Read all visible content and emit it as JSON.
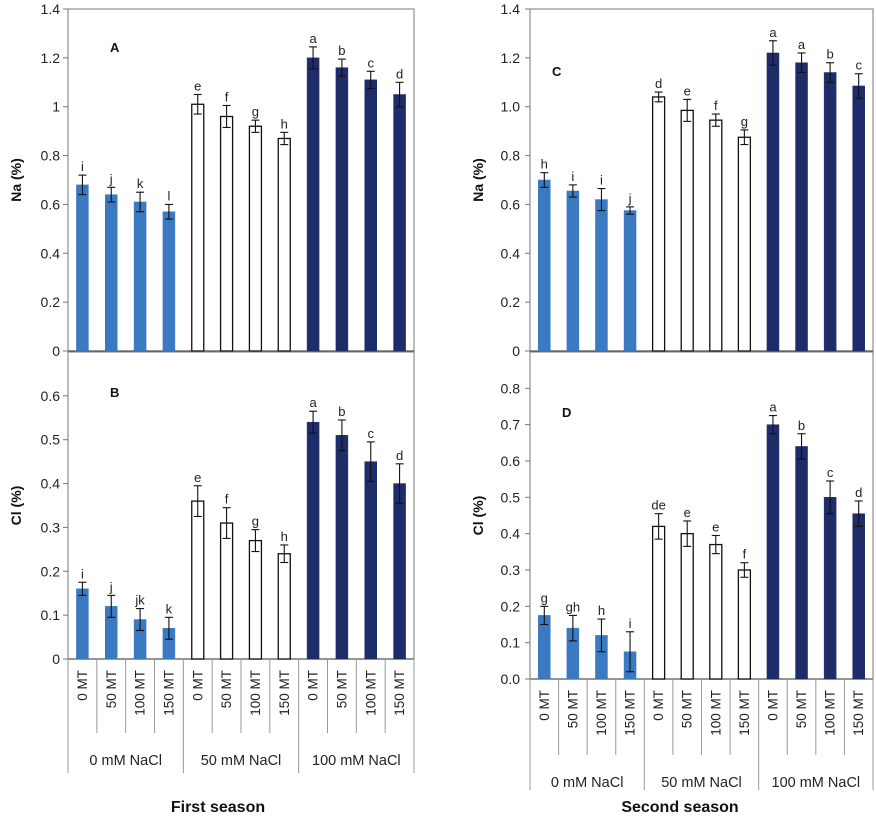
{
  "colors": {
    "group_0": "#3b79c1",
    "group_50": "#ffffff",
    "group_100": "#1e2c69",
    "outline": "#111111"
  },
  "seasons": [
    "First season",
    "Second season"
  ],
  "chart_data": [
    {
      "panel": "A",
      "type": "bar",
      "ylabel": "Na (%)",
      "ylim": [
        0,
        1.4
      ],
      "yticks": [
        0,
        0.2,
        0.4,
        0.6,
        0.8,
        1,
        1.2,
        1.4
      ],
      "ytick_labels": [
        "0",
        "0.2",
        "0.4",
        "0.6",
        "0.8",
        "1",
        "1.2",
        "1.4"
      ],
      "categories": [
        "0 MT",
        "50 MT",
        "100 MT",
        "150 MT",
        "0 MT",
        "50 MT",
        "100 MT",
        "150 MT",
        "0 MT",
        "50 MT",
        "100 MT",
        "150 MT"
      ],
      "groups": [
        "0 mM NaCl",
        "50 mM NaCl",
        "100 mM NaCl"
      ],
      "values": [
        0.68,
        0.64,
        0.61,
        0.57,
        1.01,
        0.96,
        0.92,
        0.87,
        1.2,
        1.16,
        1.11,
        1.05
      ],
      "errors": [
        0.04,
        0.03,
        0.04,
        0.03,
        0.04,
        0.045,
        0.025,
        0.025,
        0.045,
        0.035,
        0.035,
        0.05
      ],
      "letters": [
        "i",
        "j",
        "k",
        "l",
        "e",
        "f",
        "g",
        "h",
        "a",
        "b",
        "c",
        "d"
      ]
    },
    {
      "panel": "B",
      "type": "bar",
      "ylabel": "Cl (%)",
      "ylim": [
        0,
        0.7
      ],
      "yticks": [
        0,
        0.1,
        0.2,
        0.3,
        0.4,
        0.5,
        0.6
      ],
      "ytick_labels": [
        "0",
        "0.1",
        "0.2",
        "0.3",
        "0.4",
        "0.5",
        "0.6"
      ],
      "categories": [
        "0 MT",
        "50 MT",
        "100 MT",
        "150 MT",
        "0 MT",
        "50 MT",
        "100 MT",
        "150 MT",
        "0 MT",
        "50 MT",
        "100 MT",
        "150 MT"
      ],
      "groups": [
        "0 mM NaCl",
        "50 mM NaCl",
        "100 mM NaCl"
      ],
      "values": [
        0.16,
        0.12,
        0.09,
        0.07,
        0.36,
        0.31,
        0.27,
        0.24,
        0.54,
        0.51,
        0.45,
        0.4
      ],
      "errors": [
        0.015,
        0.025,
        0.025,
        0.025,
        0.035,
        0.035,
        0.025,
        0.02,
        0.025,
        0.035,
        0.045,
        0.045
      ],
      "letters": [
        "i",
        "j",
        "jk",
        "k",
        "e",
        "f",
        "g",
        "h",
        "a",
        "b",
        "c",
        "d"
      ]
    },
    {
      "panel": "C",
      "type": "bar",
      "ylabel": "Na (%)",
      "ylim": [
        0,
        1.4
      ],
      "yticks": [
        0,
        0.2,
        0.4,
        0.6,
        0.8,
        1.0,
        1.2,
        1.4
      ],
      "ytick_labels": [
        "0",
        "0.2",
        "0.4",
        "0.6",
        "0.8",
        "1.0",
        "1.2",
        "1.4"
      ],
      "categories": [
        "0 MT",
        "50 MT",
        "100 MT",
        "150 MT",
        "0 MT",
        "50 MT",
        "100 MT",
        "150 MT",
        "0 MT",
        "50 MT",
        "100 MT",
        "150 MT"
      ],
      "groups": [
        "0 mM NaCl",
        "50 mM NaCl",
        "100 mM NaCl"
      ],
      "values": [
        0.7,
        0.655,
        0.62,
        0.575,
        1.04,
        0.985,
        0.945,
        0.875,
        1.22,
        1.18,
        1.14,
        1.085
      ],
      "errors": [
        0.03,
        0.025,
        0.045,
        0.015,
        0.02,
        0.045,
        0.025,
        0.03,
        0.05,
        0.04,
        0.04,
        0.05
      ],
      "letters": [
        "h",
        "i",
        "i",
        "j",
        "d",
        "e",
        "f",
        "g",
        "a",
        "a",
        "b",
        "c"
      ]
    },
    {
      "panel": "D",
      "type": "bar",
      "ylabel": "Cl (%)",
      "ylim": [
        0,
        0.9
      ],
      "yticks": [
        0,
        0.1,
        0.2,
        0.3,
        0.4,
        0.5,
        0.6,
        0.7,
        0.8
      ],
      "ytick_labels": [
        "0.0",
        "0.1",
        "0.2",
        "0.3",
        "0.4",
        "0.5",
        "0.6",
        "0.7",
        "0.8"
      ],
      "categories": [
        "0 MT",
        "50 MT",
        "100 MT",
        "150 MT",
        "0 MT",
        "50 MT",
        "100 MT",
        "150 MT",
        "0 MT",
        "50 MT",
        "100 MT",
        "150 MT"
      ],
      "groups": [
        "0 mM NaCl",
        "50 mM NaCl",
        "100 mM NaCl"
      ],
      "values": [
        0.175,
        0.14,
        0.12,
        0.075,
        0.42,
        0.4,
        0.37,
        0.3,
        0.7,
        0.64,
        0.5,
        0.455
      ],
      "errors": [
        0.025,
        0.035,
        0.045,
        0.055,
        0.035,
        0.035,
        0.025,
        0.02,
        0.025,
        0.035,
        0.045,
        0.035
      ],
      "letters": [
        "g",
        "gh",
        "h",
        "i",
        "de",
        "e",
        "e",
        "f",
        "a",
        "b",
        "c",
        "d"
      ]
    }
  ]
}
